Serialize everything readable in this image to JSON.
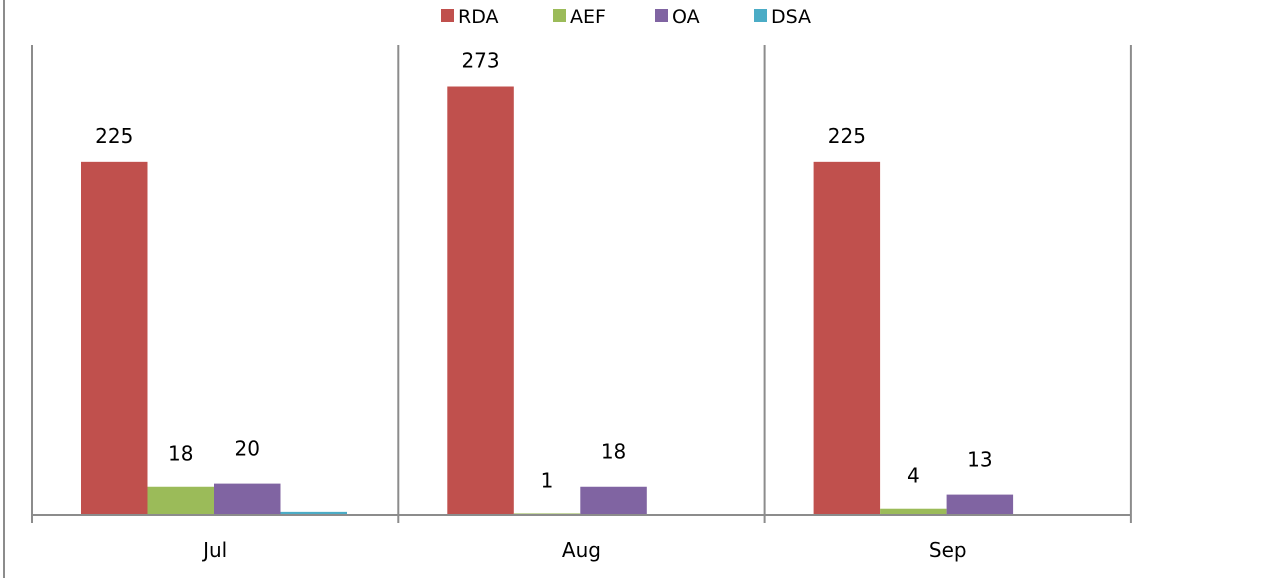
{
  "chart_data": {
    "type": "bar",
    "title": "",
    "xlabel": "",
    "ylabel": "",
    "categories": [
      "Jul",
      "Aug",
      "Sep"
    ],
    "ylim": [
      0,
      300
    ],
    "grid": false,
    "legend_position": "top",
    "series": [
      {
        "name": "RDA",
        "values": [
          225,
          273,
          225
        ],
        "labels": [
          "225",
          "273",
          "225"
        ],
        "color": "#c0504d"
      },
      {
        "name": "AEF",
        "values": [
          18,
          1,
          4
        ],
        "labels": [
          "18",
          "1",
          "4"
        ],
        "color": "#9bbb59"
      },
      {
        "name": "OA",
        "values": [
          20,
          18,
          13
        ],
        "labels": [
          "20",
          "18",
          "13"
        ],
        "color": "#8064a2"
      },
      {
        "name": "DSA",
        "values": [
          2,
          0,
          0
        ],
        "labels": [
          "",
          "",
          ""
        ],
        "color": "#4bacc6"
      }
    ]
  }
}
